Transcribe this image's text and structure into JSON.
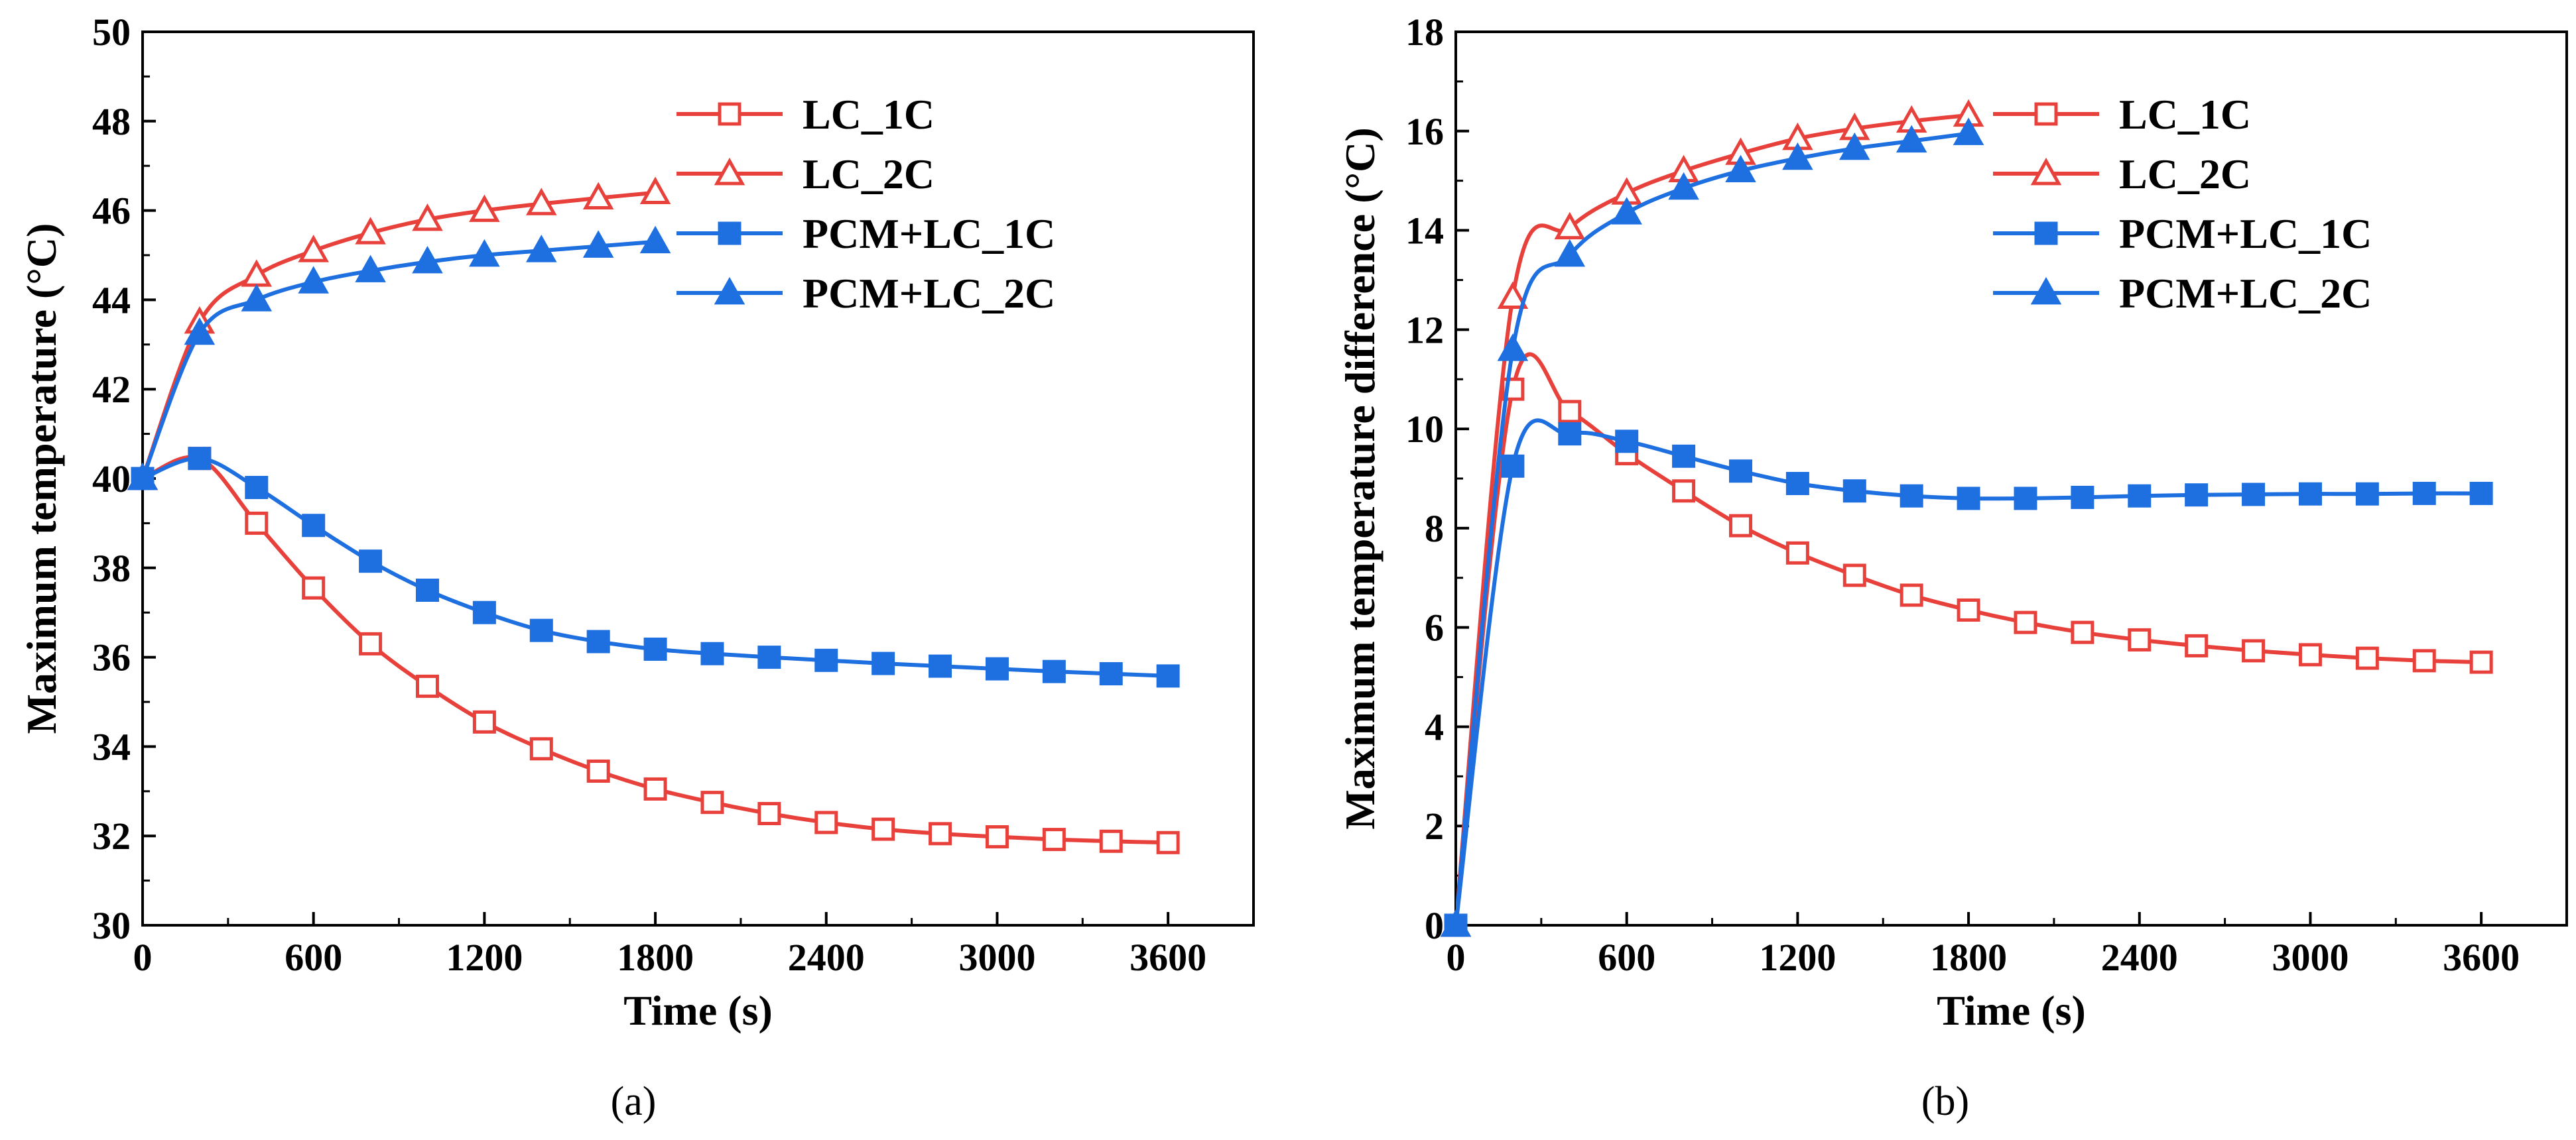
{
  "colors": {
    "red": "#E8413B",
    "blue": "#1E6FE0",
    "axis": "#000000"
  },
  "panels": [
    {
      "label": "(a)",
      "legend": [
        "LC_1C",
        "LC_2C",
        "PCM+LC_1C",
        "PCM+LC_2C"
      ],
      "chart_data": {
        "type": "line",
        "xlabel": "Time (s)",
        "ylabel": "Maximum temperature (°C)",
        "xlim": [
          0,
          3900
        ],
        "ylim": [
          30,
          50
        ],
        "xticks": [
          0,
          600,
          1200,
          1800,
          2400,
          3000,
          3600
        ],
        "yticks": [
          30,
          32,
          34,
          36,
          38,
          40,
          42,
          44,
          46,
          48,
          50
        ],
        "legend_position": "top-right",
        "series": [
          {
            "name": "LC_1C",
            "color": "red",
            "marker": "square-open",
            "x": [
              0,
              200,
              400,
              600,
              800,
              1000,
              1200,
              1400,
              1600,
              1800,
              2000,
              2200,
              2400,
              2600,
              2800,
              3000,
              3200,
              3400,
              3600
            ],
            "y": [
              40.0,
              40.45,
              39.0,
              37.55,
              36.3,
              35.35,
              34.55,
              33.95,
              33.45,
              33.05,
              32.75,
              32.5,
              32.3,
              32.15,
              32.05,
              31.98,
              31.92,
              31.88,
              31.85
            ]
          },
          {
            "name": "LC_2C",
            "color": "red",
            "marker": "triangle-open",
            "x": [
              0,
              200,
              400,
              600,
              800,
              1000,
              1200,
              1400,
              1600,
              1800
            ],
            "y": [
              40.0,
              43.5,
              44.55,
              45.1,
              45.5,
              45.8,
              46.0,
              46.15,
              46.28,
              46.4
            ]
          },
          {
            "name": "PCM+LC_1C",
            "color": "blue",
            "marker": "square-filled",
            "x": [
              0,
              200,
              400,
              600,
              800,
              1000,
              1200,
              1400,
              1600,
              1800,
              2000,
              2200,
              2400,
              2600,
              2800,
              3000,
              3200,
              3400,
              3600
            ],
            "y": [
              40.0,
              40.45,
              39.8,
              38.95,
              38.15,
              37.5,
              37.0,
              36.6,
              36.35,
              36.18,
              36.08,
              36.0,
              35.93,
              35.86,
              35.8,
              35.74,
              35.68,
              35.63,
              35.58
            ]
          },
          {
            "name": "PCM+LC_2C",
            "color": "blue",
            "marker": "triangle-filled",
            "x": [
              0,
              200,
              400,
              600,
              800,
              1000,
              1200,
              1400,
              1600,
              1800
            ],
            "y": [
              40.0,
              43.25,
              44.0,
              44.4,
              44.65,
              44.85,
              45.0,
              45.1,
              45.2,
              45.3
            ]
          }
        ]
      }
    },
    {
      "label": "(b)",
      "legend": [
        "LC_1C",
        "LC_2C",
        "PCM+LC_1C",
        "PCM+LC_2C"
      ],
      "chart_data": {
        "type": "line",
        "xlabel": "Time (s)",
        "ylabel": "Maximum temperature difference (°C)",
        "xlim": [
          0,
          3900
        ],
        "ylim": [
          0,
          18
        ],
        "xticks": [
          0,
          600,
          1200,
          1800,
          2400,
          3000,
          3600
        ],
        "yticks": [
          0,
          2,
          4,
          6,
          8,
          10,
          12,
          14,
          16,
          18
        ],
        "legend_position": "top-right",
        "series": [
          {
            "name": "LC_1C",
            "color": "red",
            "marker": "square-open",
            "x": [
              0,
              200,
              400,
              600,
              800,
              1000,
              1200,
              1400,
              1600,
              1800,
              2000,
              2200,
              2400,
              2600,
              2800,
              3000,
              3200,
              3400,
              3600
            ],
            "y": [
              0,
              10.8,
              10.35,
              9.5,
              8.75,
              8.05,
              7.5,
              7.05,
              6.65,
              6.35,
              6.1,
              5.9,
              5.75,
              5.63,
              5.53,
              5.45,
              5.38,
              5.33,
              5.3
            ]
          },
          {
            "name": "LC_2C",
            "color": "red",
            "marker": "triangle-open",
            "x": [
              0,
              200,
              400,
              600,
              800,
              1000,
              1200,
              1400,
              1600,
              1800
            ],
            "y": [
              0,
              12.65,
              14.05,
              14.75,
              15.2,
              15.55,
              15.85,
              16.05,
              16.2,
              16.32
            ]
          },
          {
            "name": "PCM+LC_1C",
            "color": "blue",
            "marker": "square-filled",
            "x": [
              0,
              200,
              400,
              600,
              800,
              1000,
              1200,
              1400,
              1600,
              1800,
              2000,
              2200,
              2400,
              2600,
              2800,
              3000,
              3200,
              3400,
              3600
            ],
            "y": [
              0,
              9.25,
              9.9,
              9.75,
              9.45,
              9.15,
              8.9,
              8.75,
              8.65,
              8.6,
              8.6,
              8.62,
              8.65,
              8.67,
              8.68,
              8.69,
              8.69,
              8.7,
              8.7
            ]
          },
          {
            "name": "PCM+LC_2C",
            "color": "blue",
            "marker": "triangle-filled",
            "x": [
              0,
              200,
              400,
              600,
              800,
              1000,
              1200,
              1400,
              1600,
              1800
            ],
            "y": [
              0,
              11.6,
              13.5,
              14.35,
              14.85,
              15.2,
              15.45,
              15.65,
              15.8,
              15.95
            ]
          }
        ]
      }
    }
  ]
}
